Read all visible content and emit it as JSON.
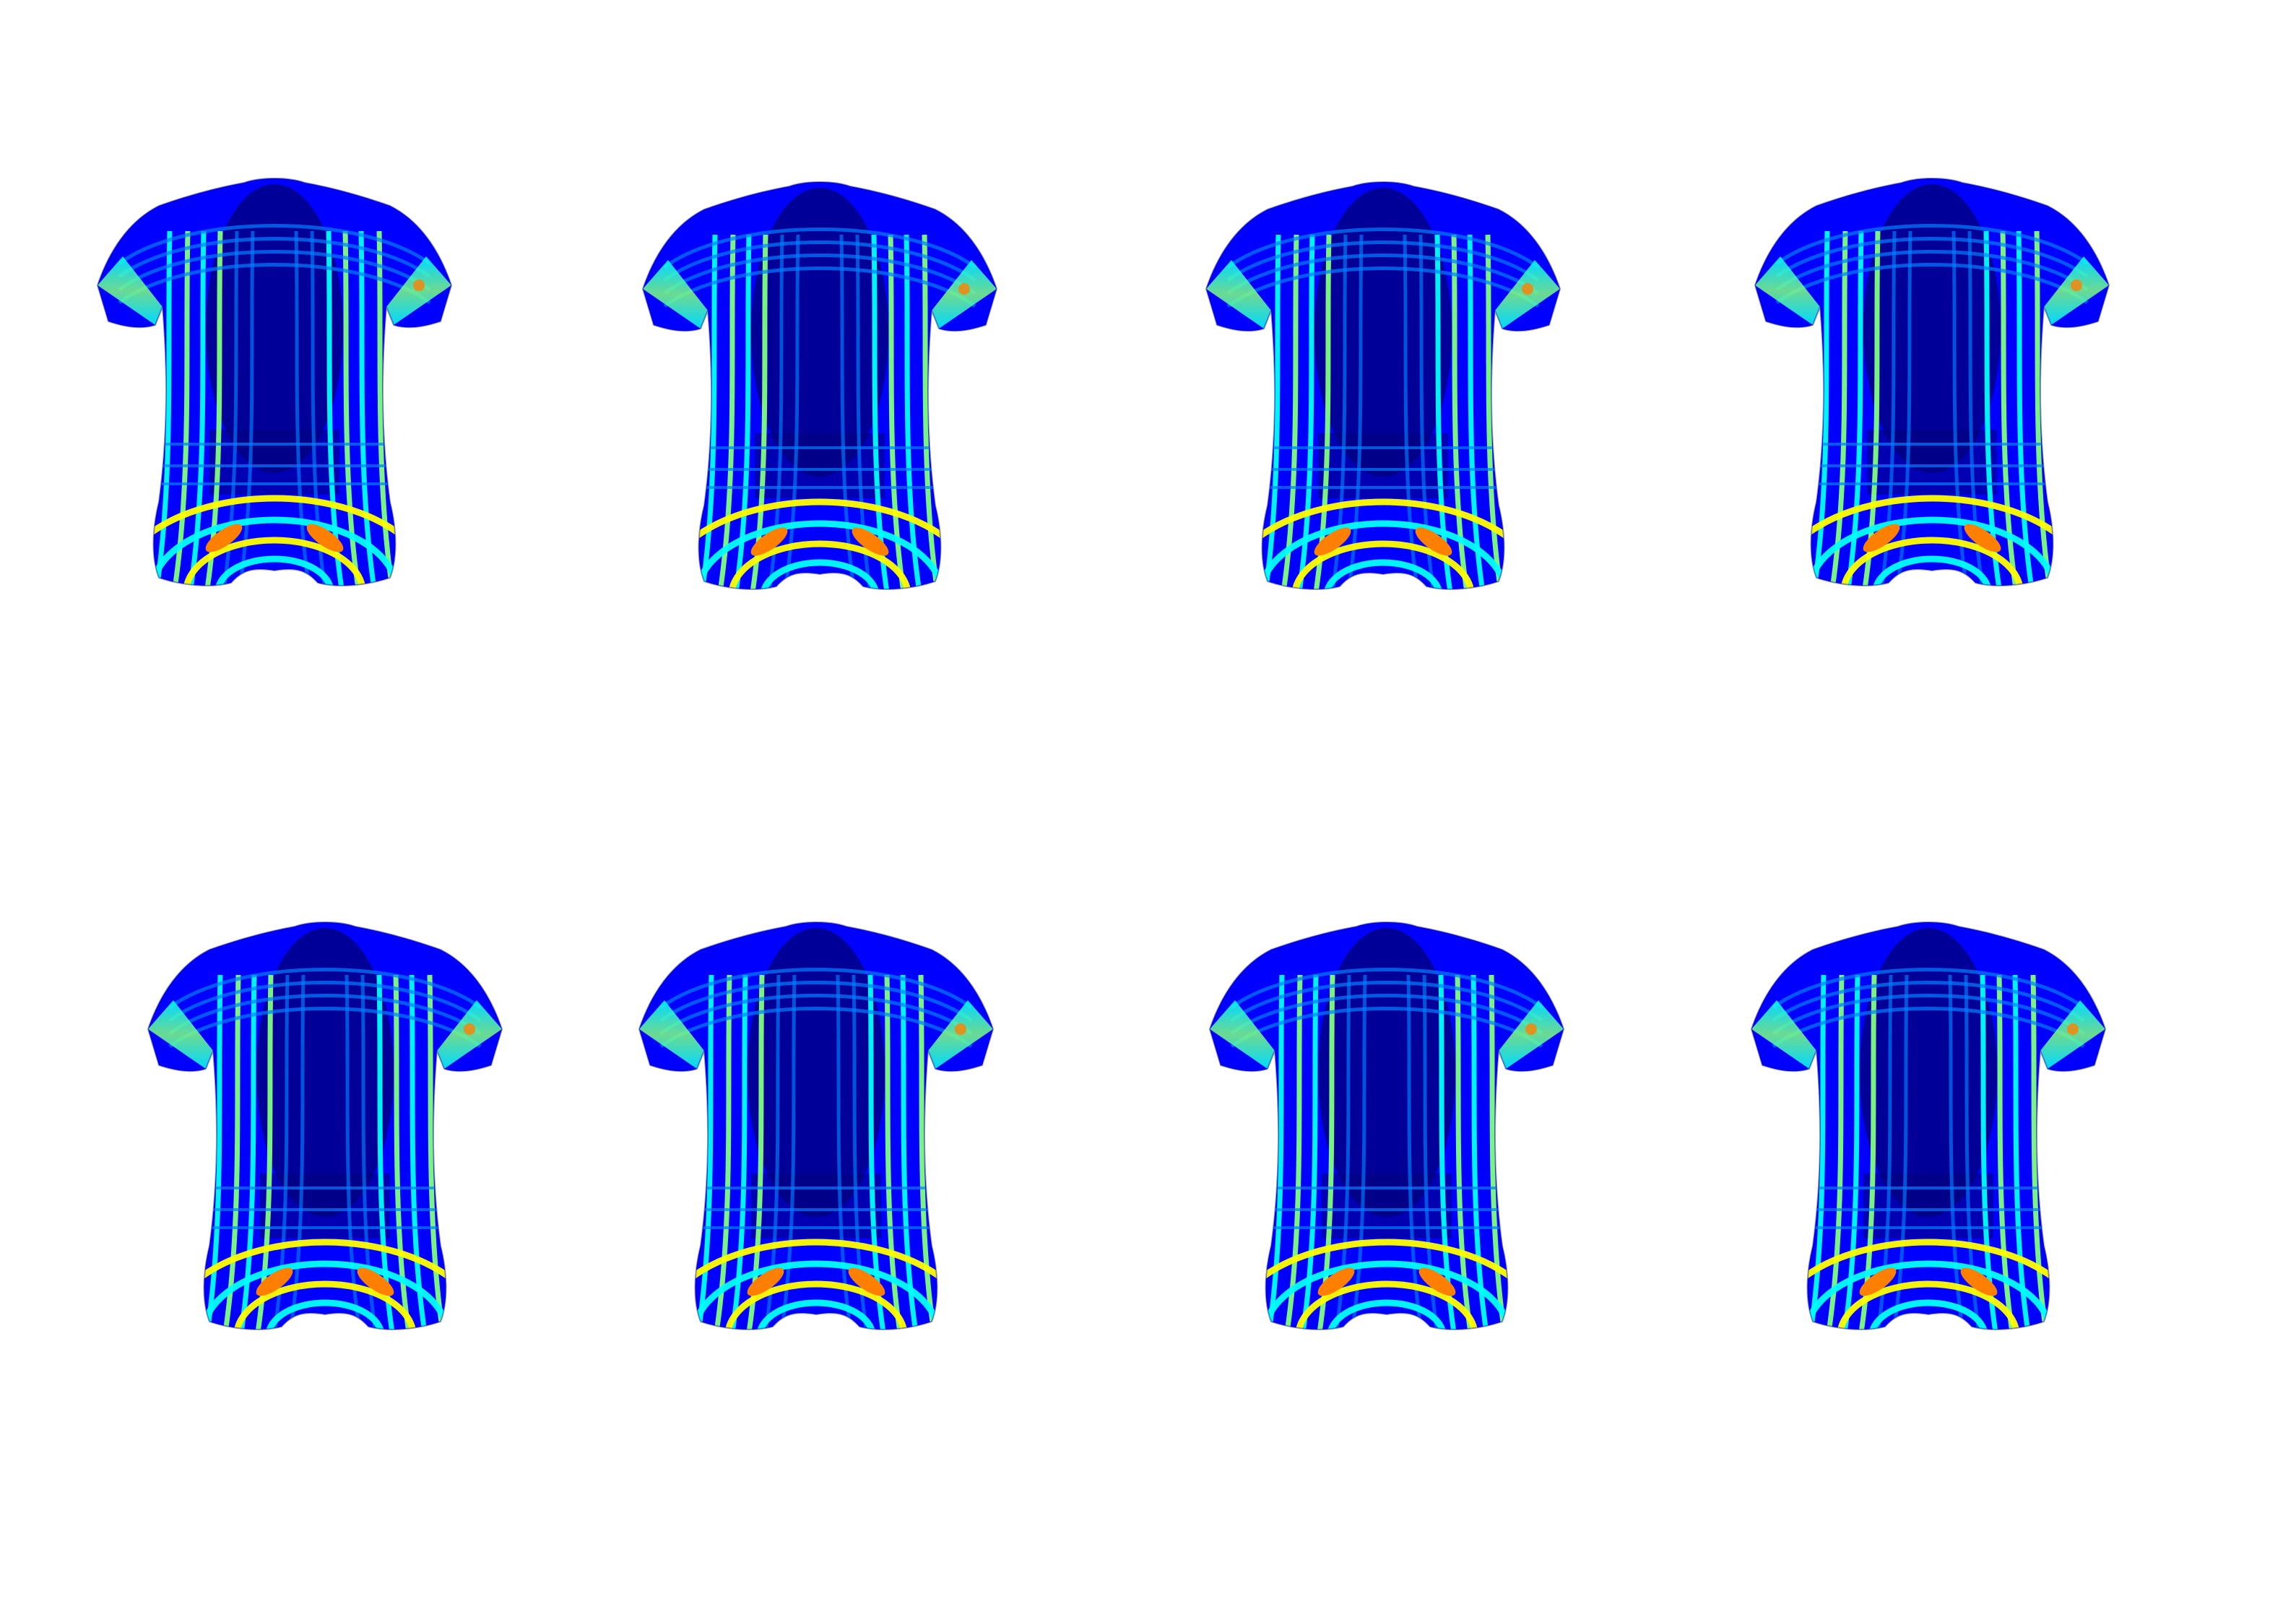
{
  "figure": {
    "rows": 2,
    "columns": 4,
    "colormap": "jet",
    "colormap_stops": [
      "#00007f",
      "#0000ff",
      "#007fff",
      "#00ffff",
      "#7fff7f",
      "#ffff00",
      "#ff7f00",
      "#ff0000"
    ],
    "background": "#ffffff"
  },
  "panels": [
    {
      "row": 1,
      "col": 1,
      "subject": "t-shirt-heatmap"
    },
    {
      "row": 1,
      "col": 2,
      "subject": "t-shirt-heatmap"
    },
    {
      "row": 1,
      "col": 3,
      "subject": "t-shirt-heatmap"
    },
    {
      "row": 1,
      "col": 4,
      "subject": "t-shirt-heatmap"
    },
    {
      "row": 2,
      "col": 1,
      "subject": "t-shirt-heatmap"
    },
    {
      "row": 2,
      "col": 2,
      "subject": "t-shirt-heatmap"
    },
    {
      "row": 2,
      "col": 3,
      "subject": "t-shirt-heatmap"
    },
    {
      "row": 2,
      "col": 4,
      "subject": "t-shirt-heatmap"
    }
  ]
}
